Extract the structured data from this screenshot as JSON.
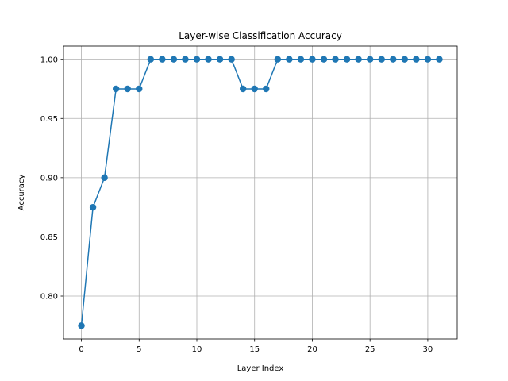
{
  "chart_data": {
    "type": "line",
    "title": "Layer-wise Classification Accuracy",
    "xlabel": "Layer Index",
    "ylabel": "Accuracy",
    "xlim": [
      -1.55,
      32.55
    ],
    "ylim": [
      0.7638,
      1.0112
    ],
    "xticks": [
      0,
      5,
      10,
      15,
      20,
      25,
      30
    ],
    "yticks": [
      0.8,
      0.85,
      0.9,
      0.95,
      1.0
    ],
    "ytick_labels": [
      "0.80",
      "0.85",
      "0.90",
      "0.95",
      "1.00"
    ],
    "grid": true,
    "marker": "circle",
    "color": "#1f77b4",
    "series": [
      {
        "x": [
          0,
          1,
          2,
          3,
          4,
          5,
          6,
          7,
          8,
          9,
          10,
          11,
          12,
          13,
          14,
          15,
          16,
          17,
          18,
          19,
          20,
          21,
          22,
          23,
          24,
          25,
          26,
          27,
          28,
          29,
          30,
          31
        ],
        "values": [
          0.775,
          0.875,
          0.9,
          0.975,
          0.975,
          0.975,
          1.0,
          1.0,
          1.0,
          1.0,
          1.0,
          1.0,
          1.0,
          1.0,
          0.975,
          0.975,
          0.975,
          1.0,
          1.0,
          1.0,
          1.0,
          1.0,
          1.0,
          1.0,
          1.0,
          1.0,
          1.0,
          1.0,
          1.0,
          1.0,
          1.0,
          1.0
        ]
      }
    ]
  }
}
